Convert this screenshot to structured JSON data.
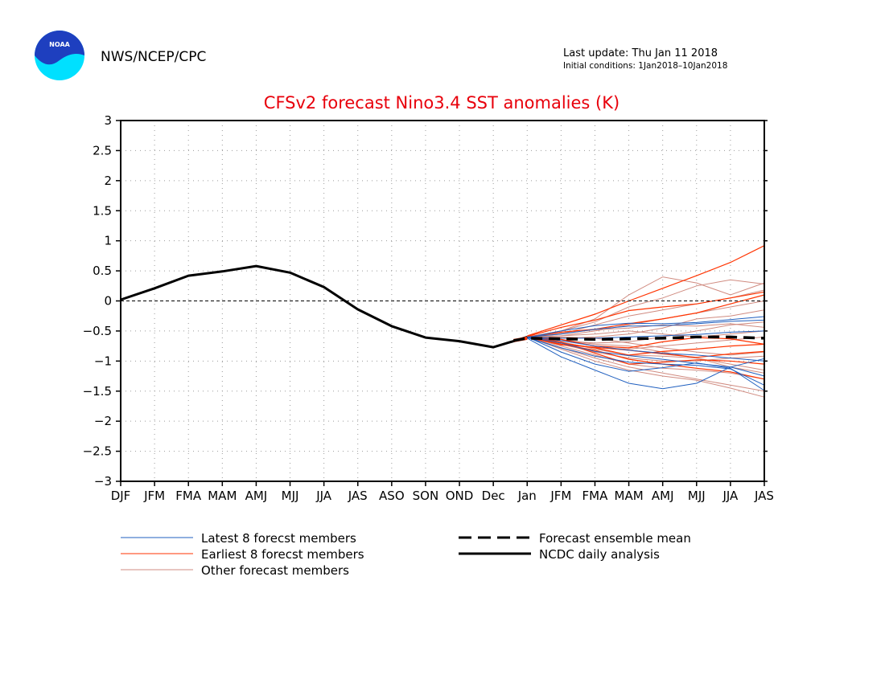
{
  "header": {
    "logo_text": "NOAA",
    "agency": "NWS/NCEP/CPC",
    "last_update": "Last update: Thu Jan 11 2018",
    "initial_conditions": "Initial conditions: 1Jan2018–10Jan2018"
  },
  "chart_data": {
    "type": "line",
    "title": "CFSv2 forecast Nino3.4 SST anomalies (K)",
    "xlabel": "",
    "ylabel": "",
    "categories": [
      "DJF",
      "JFM",
      "FMA",
      "MAM",
      "AMJ",
      "MJJ",
      "JJA",
      "JAS",
      "ASO",
      "SON",
      "OND",
      "Dec",
      "Jan",
      "JFM",
      "FMA",
      "MAM",
      "AMJ",
      "MJJ",
      "JJA",
      "JAS"
    ],
    "ylim": [
      -3,
      3
    ],
    "yticks": [
      3,
      2.5,
      2,
      1.5,
      1,
      0.5,
      0,
      -0.5,
      -1,
      -1.5,
      -2,
      -2.5,
      -3
    ],
    "ytick_labels": [
      "3",
      "2.5",
      "2",
      "1.5",
      "1",
      "0.5",
      "0",
      "−0.5",
      "−1",
      "−1.5",
      "−2",
      "−2.5",
      "−3"
    ],
    "grid": true,
    "zero_line": true,
    "colors": {
      "title": "#e8000b",
      "analysis": "#000000",
      "latest": "#1f5fbf",
      "earliest": "#ff3300",
      "other": "#d08b80",
      "mean": "#000000"
    },
    "legend": {
      "latest": "Latest 8 forecst members",
      "earliest": "Earliest 8 forecst members",
      "other": "Other forecast members",
      "mean": "Forecast ensemble mean",
      "analysis": "NCDC daily analysis"
    },
    "analysis": {
      "x": [
        0,
        1,
        2,
        3,
        4,
        5,
        6,
        7,
        8,
        9,
        10,
        11,
        12
      ],
      "y": [
        0.02,
        0.21,
        0.42,
        0.49,
        0.58,
        0.47,
        0.23,
        -0.14,
        -0.42,
        -0.61,
        -0.67,
        -0.77,
        -0.6
      ]
    },
    "ensemble_mean": {
      "x": [
        11.6,
        12,
        13,
        14,
        15,
        16,
        17,
        18,
        19
      ],
      "y": [
        -0.66,
        -0.62,
        -0.63,
        -0.64,
        -0.63,
        -0.62,
        -0.6,
        -0.6,
        -0.62
      ]
    },
    "members_latest": [
      [
        -0.62,
        -0.93,
        -1.15,
        -1.37,
        -1.46,
        -1.37,
        -1.1,
        -0.96
      ],
      [
        -0.6,
        -0.85,
        -1.05,
        -1.17,
        -1.11,
        -1.03,
        -1.12,
        -1.49
      ],
      [
        -0.61,
        -0.78,
        -0.92,
        -1.02,
        -1.05,
        -1.07,
        -1.13,
        -1.4
      ],
      [
        -0.6,
        -0.7,
        -0.84,
        -0.91,
        -0.97,
        -1.04,
        -1.1,
        -1.25
      ],
      [
        -0.6,
        -0.55,
        -0.47,
        -0.42,
        -0.41,
        -0.38,
        -0.34,
        -0.32
      ],
      [
        -0.61,
        -0.5,
        -0.41,
        -0.37,
        -0.38,
        -0.36,
        -0.31,
        -0.26
      ],
      [
        -0.6,
        -0.62,
        -0.62,
        -0.6,
        -0.58,
        -0.56,
        -0.52,
        -0.5
      ],
      [
        -0.6,
        -0.66,
        -0.75,
        -0.82,
        -0.87,
        -0.9,
        -0.95,
        -1.0
      ]
    ],
    "members_earliest": [
      [
        -0.58,
        -0.4,
        -0.22,
        0.0,
        0.21,
        0.42,
        0.64,
        0.92
      ],
      [
        -0.59,
        -0.44,
        -0.32,
        -0.16,
        -0.1,
        -0.05,
        0.05,
        0.15
      ],
      [
        -0.6,
        -0.52,
        -0.47,
        -0.38,
        -0.3,
        -0.2,
        -0.05,
        0.1
      ],
      [
        -0.6,
        -0.7,
        -0.78,
        -0.9,
        -0.84,
        -0.8,
        -0.75,
        -0.72
      ],
      [
        -0.61,
        -0.72,
        -0.82,
        -0.97,
        -1.05,
        -1.12,
        -1.18,
        -1.3
      ],
      [
        -0.6,
        -0.73,
        -0.77,
        -0.82,
        -0.88,
        -0.94,
        -0.88,
        -0.84
      ],
      [
        -0.59,
        -0.64,
        -0.75,
        -0.78,
        -0.68,
        -0.61,
        -0.63,
        -0.72
      ],
      [
        -0.6,
        -0.68,
        -0.87,
        -1.05,
        -1.02,
        -0.98,
        -1.0,
        -1.05
      ]
    ],
    "members_other": [
      [
        -0.6,
        -0.5,
        -0.3,
        0.1,
        0.4,
        0.3,
        0.1,
        0.3
      ],
      [
        -0.6,
        -0.5,
        -0.35,
        -0.1,
        0.05,
        0.25,
        0.35,
        0.28
      ],
      [
        -0.6,
        -0.55,
        -0.4,
        -0.25,
        -0.15,
        -0.05,
        0.05,
        0.18
      ],
      [
        -0.6,
        -0.58,
        -0.5,
        -0.4,
        -0.3,
        -0.2,
        -0.1,
        0.0
      ],
      [
        -0.6,
        -0.62,
        -0.6,
        -0.55,
        -0.45,
        -0.3,
        -0.25,
        -0.15
      ],
      [
        -0.6,
        -0.66,
        -0.7,
        -0.68,
        -0.6,
        -0.5,
        -0.4,
        -0.35
      ],
      [
        -0.6,
        -0.7,
        -0.78,
        -0.8,
        -0.75,
        -0.7,
        -0.65,
        -0.6
      ],
      [
        -0.6,
        -0.72,
        -0.85,
        -0.95,
        -1.0,
        -1.0,
        -0.95,
        -0.92
      ],
      [
        -0.6,
        -0.75,
        -0.9,
        -1.05,
        -1.12,
        -1.15,
        -1.2,
        -1.3
      ],
      [
        -0.6,
        -0.78,
        -0.95,
        -1.1,
        -1.2,
        -1.3,
        -1.4,
        -1.5
      ],
      [
        -0.6,
        -0.8,
        -1.0,
        -1.15,
        -1.25,
        -1.32,
        -1.45,
        -1.6
      ],
      [
        -0.6,
        -0.68,
        -0.8,
        -0.9,
        -0.92,
        -0.95,
        -1.05,
        -1.15
      ],
      [
        -0.6,
        -0.64,
        -0.72,
        -0.75,
        -0.85,
        -0.95,
        -1.1,
        -1.2
      ],
      [
        -0.6,
        -0.58,
        -0.55,
        -0.5,
        -0.55,
        -0.6,
        -0.55,
        -0.5
      ],
      [
        -0.6,
        -0.6,
        -0.62,
        -0.7,
        -0.78,
        -0.85,
        -0.9,
        -0.85
      ],
      [
        -0.6,
        -0.54,
        -0.48,
        -0.45,
        -0.4,
        -0.42,
        -0.38,
        -0.44
      ]
    ]
  }
}
